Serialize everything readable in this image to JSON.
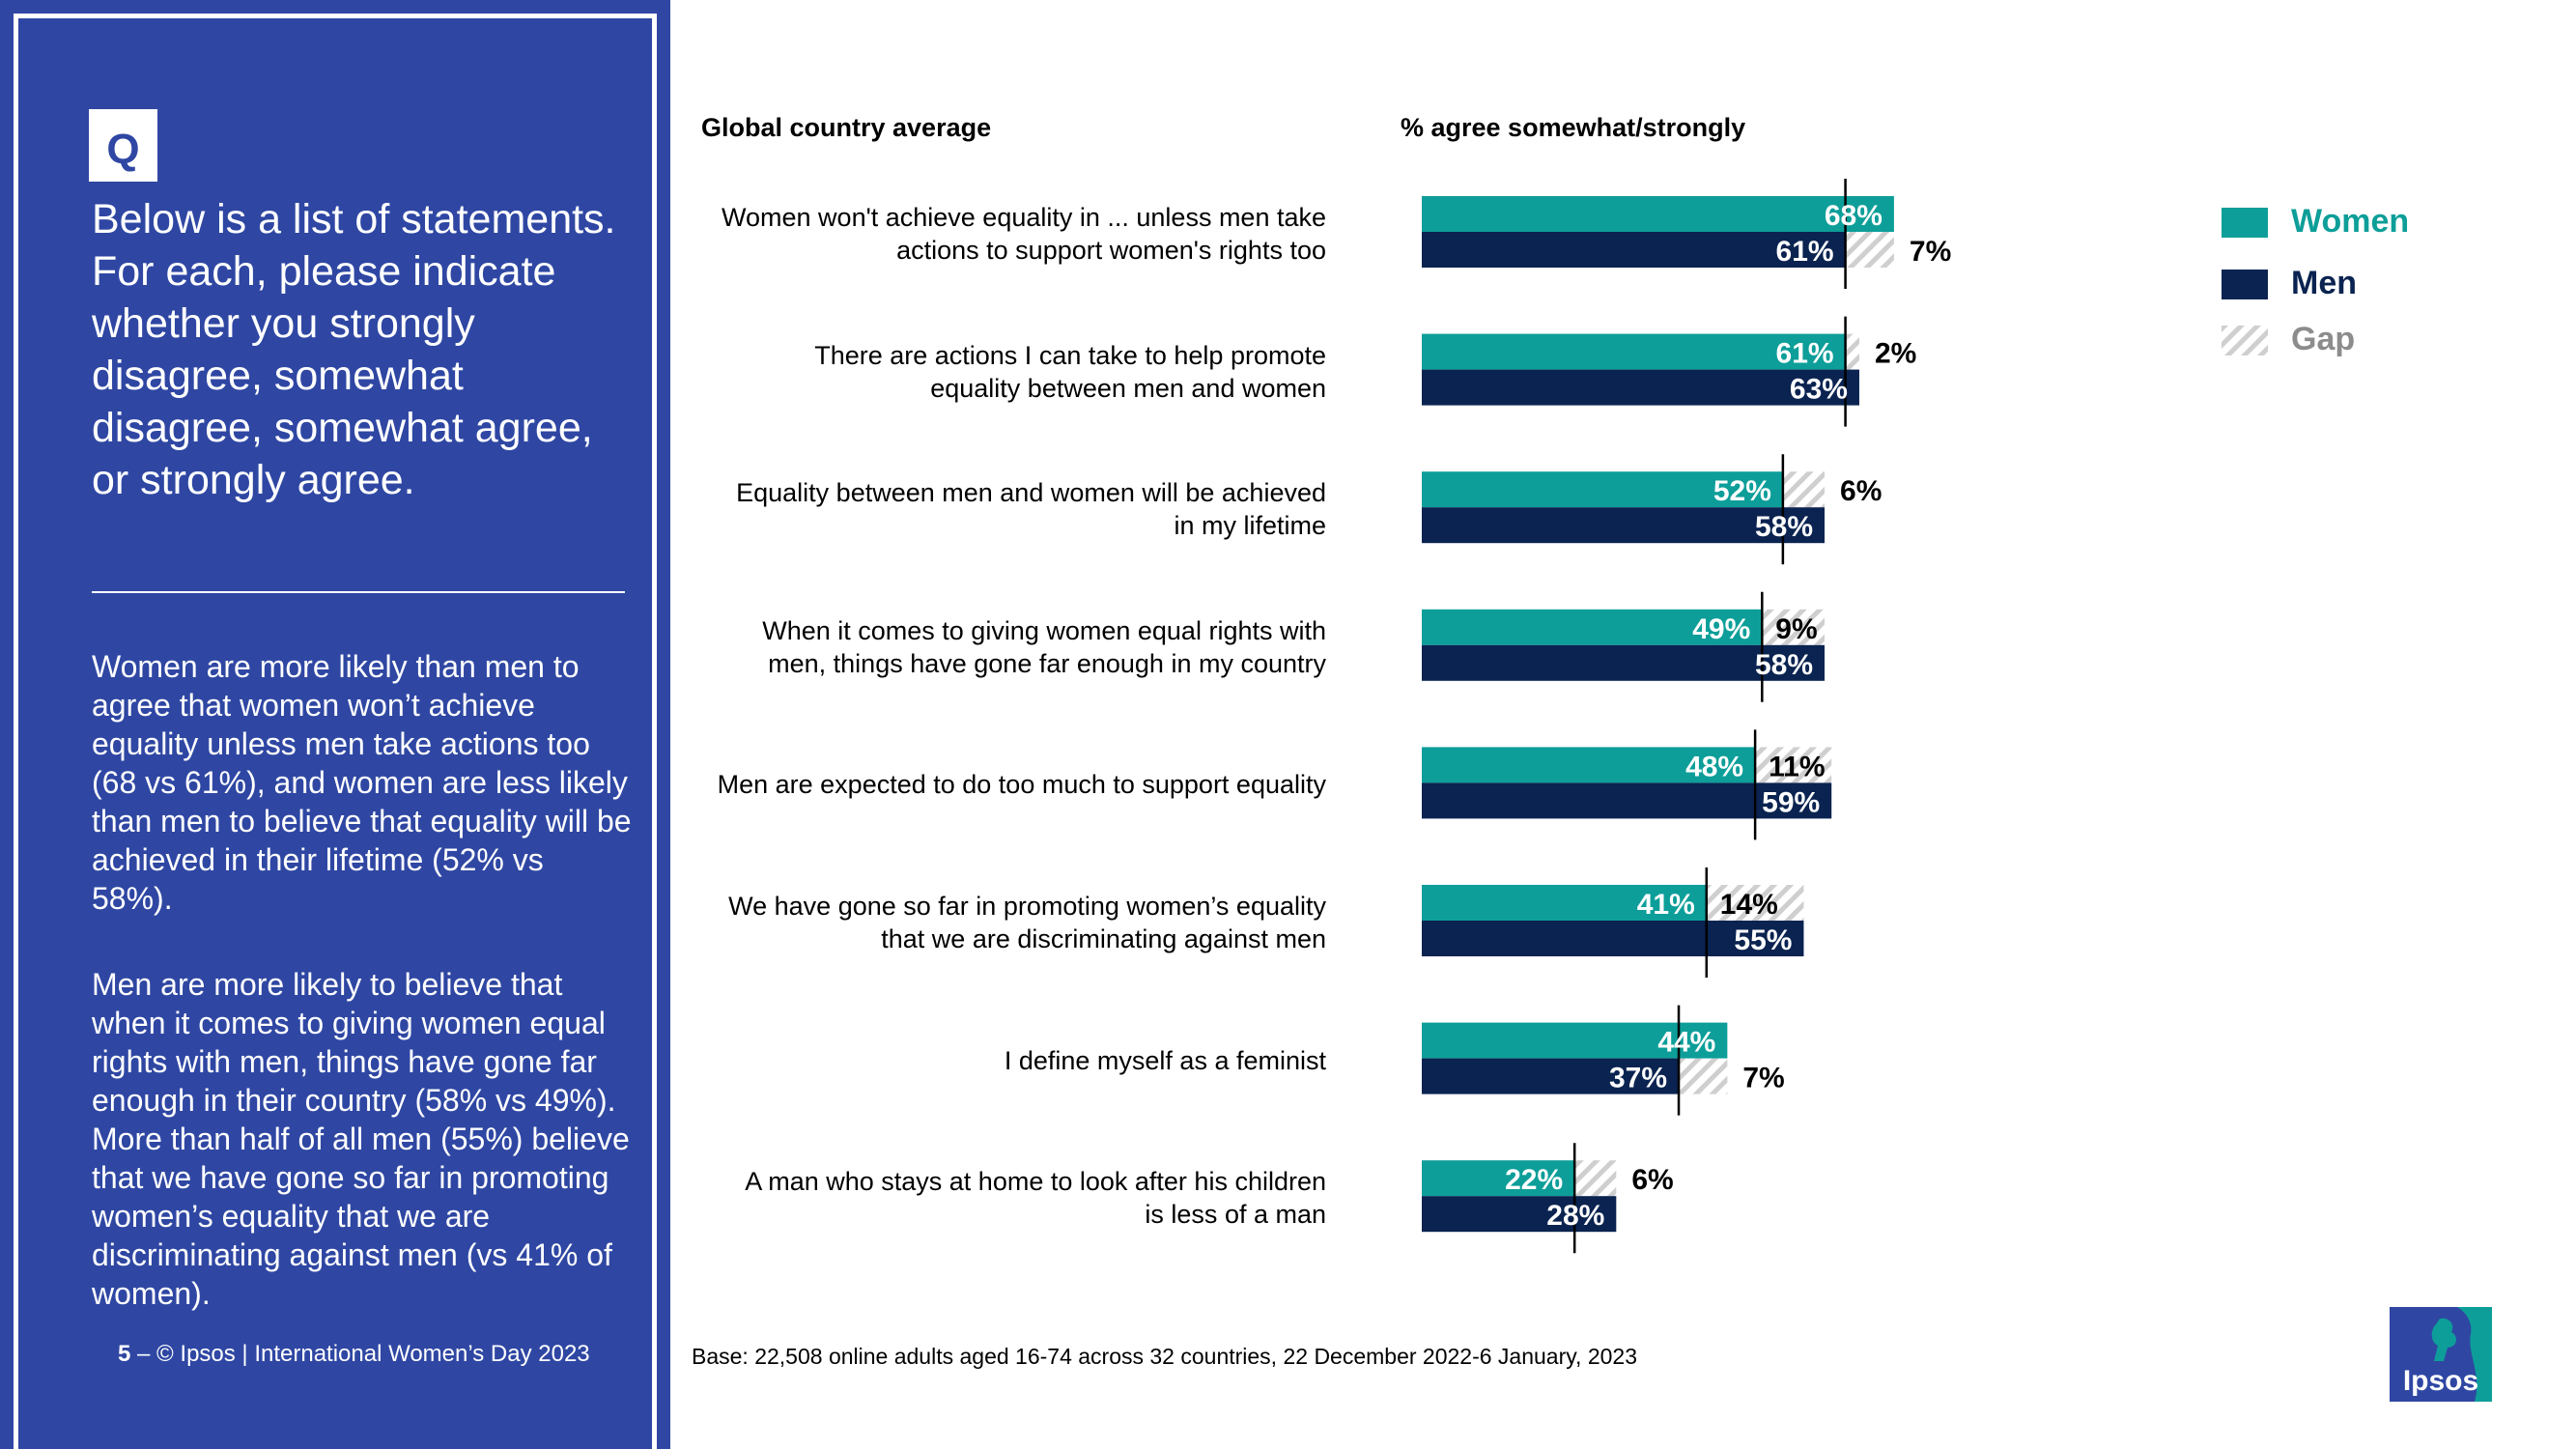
{
  "panel": {
    "badge": "Q",
    "question": "Below is a list of statements. For each, please indicate whether you strongly disagree, somewhat disagree, somewhat agree, or strongly agree.",
    "para1": "Women are more likely than men to agree that women won’t achieve equality unless men take actions too (68 vs 61%), and women are less likely than men to believe that equality will be achieved in their lifetime (52% vs 58%).",
    "para2": "Men are more likely to believe that when it comes to giving women equal rights with men, things have gone far enough in their country (58% vs 49%). More than half of all men (55%) believe that we have gone so far in promoting women’s equality that we are discriminating against men (vs 41% of women).",
    "page_number": "5",
    "footer": "– © Ipsos | International Women’s Day 2023"
  },
  "colors": {
    "panel_bg": "#2f47a3",
    "women": "#0d9e99",
    "men": "#0a2350",
    "gap": "#cfcfcf",
    "legend_women_text": "#0d9e99",
    "legend_men_text": "#0a2350",
    "legend_gap_text": "#8c8c8c"
  },
  "chart_data": {
    "type": "bar",
    "orientation": "horizontal",
    "left_header": "Global country average",
    "right_header": "% agree somewhat/strongly",
    "categories": [
      "Women won't achieve equality in ... unless men take actions to support women's rights too",
      "There are actions I can take to help promote equality between men and women",
      "Equality between men and women will be achieved in my lifetime",
      "When it comes to giving women equal rights with men, things have gone far enough in my country",
      "Men are expected to do too much to support equality",
      "We have gone so far in promoting women’s equality that we are discriminating against men",
      "I define myself as a feminist",
      "A man who stays at home to look after his children is less of a man"
    ],
    "label_lines": [
      [
        "Women won't achieve equality in ... unless men take",
        "actions to support women's rights too"
      ],
      [
        "There are actions I can take to help promote",
        "equality between men and women"
      ],
      [
        "Equality between men and women will be achieved",
        "in my lifetime"
      ],
      [
        "When it comes to giving women equal rights with",
        "men, things have gone far enough in my country"
      ],
      [
        "Men are expected to do too much to support equality"
      ],
      [
        "We have gone so far in promoting women’s equality",
        "that we are discriminating against men"
      ],
      [
        "I define myself as a feminist"
      ],
      [
        "A man who stays at home to look after his children",
        "is less of a man"
      ]
    ],
    "series": [
      {
        "name": "Women",
        "values": [
          68,
          61,
          52,
          49,
          48,
          41,
          44,
          22
        ]
      },
      {
        "name": "Men",
        "values": [
          61,
          63,
          58,
          58,
          59,
          55,
          37,
          28
        ]
      },
      {
        "name": "Gap",
        "values": [
          7,
          2,
          6,
          9,
          11,
          14,
          7,
          6
        ]
      }
    ],
    "value_suffix": "%",
    "xlim": [
      0,
      100
    ],
    "legend": [
      "Women",
      "Men",
      "Gap"
    ],
    "legend_position": "top-right"
  },
  "base_note": "Base: 22,508 online adults aged 16-74 across 32 countries, 22 December 2022-6 January, 2023",
  "logo_text": "Ipsos"
}
